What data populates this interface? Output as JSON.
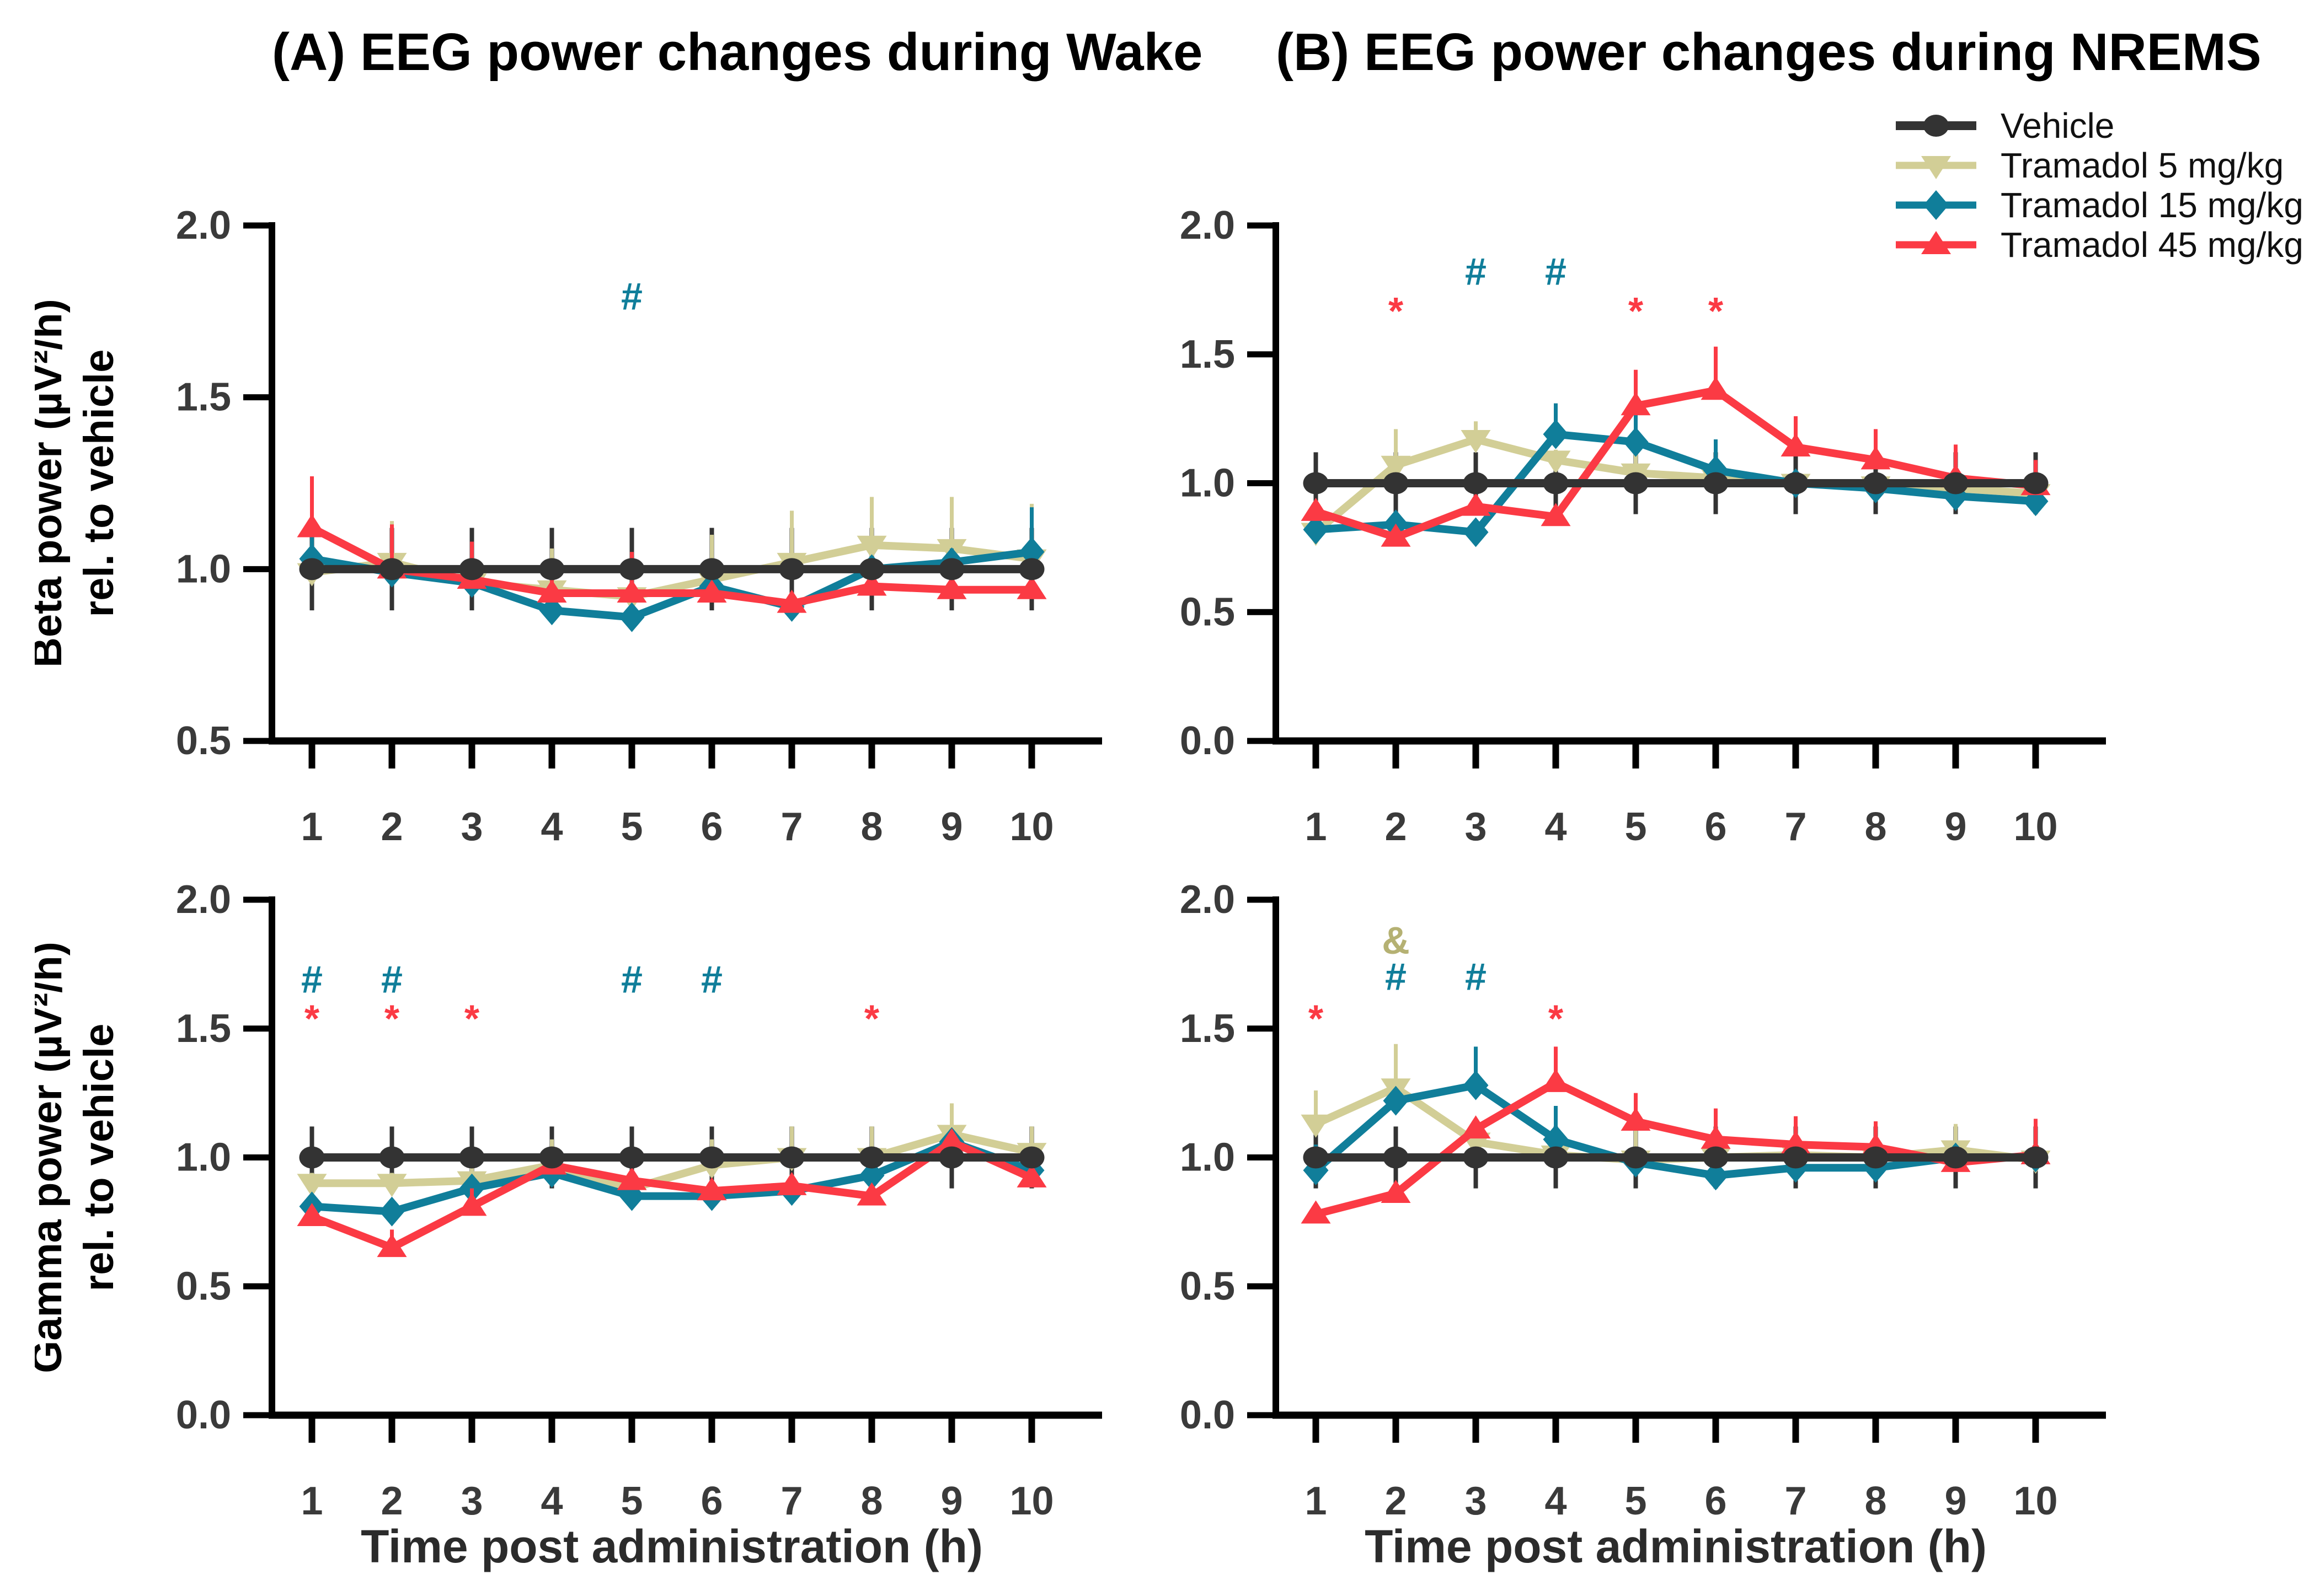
{
  "figure": {
    "panel_a_title": "(A) EEG power changes during Wake",
    "panel_b_title": "(B) EEG power changes during NREMS",
    "x_axis_label": "Time post administration (h)"
  },
  "legend": {
    "items": [
      {
        "label": "Vehicle",
        "color": "#333333",
        "marker": "circle"
      },
      {
        "label": "Tramadol 5 mg/kg",
        "color": "#D2CE96",
        "marker": "triangle-down"
      },
      {
        "label": "Tramadol 15 mg/kg",
        "color": "#107E9A",
        "marker": "diamond"
      },
      {
        "label": "Tramadol 45 mg/kg",
        "color": "#FB3A44",
        "marker": "triangle-up"
      }
    ]
  },
  "chart_data": [
    {
      "id": "beta-wake",
      "type": "line",
      "ylabel": [
        "Beta power (µV²/h)",
        "rel. to vehicle"
      ],
      "ylim": [
        0.5,
        2.0
      ],
      "yticks": [
        0.5,
        1.0,
        1.5,
        2.0
      ],
      "x": [
        1,
        2,
        3,
        4,
        5,
        6,
        7,
        8,
        9,
        10
      ],
      "series": [
        {
          "name": "Vehicle",
          "color": "#333333",
          "marker": "circle",
          "err_style": "both",
          "values": [
            1.0,
            1.0,
            1.0,
            1.0,
            1.0,
            1.0,
            1.0,
            1.0,
            1.0,
            1.0
          ],
          "err": [
            0.12,
            0.12,
            0.12,
            0.12,
            0.12,
            0.12,
            0.12,
            0.12,
            0.12,
            0.12
          ]
        },
        {
          "name": "Tramadol 5 mg/kg",
          "color": "#D2CE96",
          "marker": "triangle-down",
          "err_style": "up",
          "values": [
            0.99,
            1.02,
            0.96,
            0.94,
            0.92,
            0.97,
            1.02,
            1.07,
            1.06,
            1.03
          ],
          "err": [
            0.15,
            0.12,
            0.09,
            0.12,
            0.1,
            0.13,
            0.15,
            0.14,
            0.15,
            0.16
          ]
        },
        {
          "name": "Tramadol 15 mg/kg",
          "color": "#107E9A",
          "marker": "diamond",
          "err_style": "up",
          "values": [
            1.03,
            0.99,
            0.96,
            0.88,
            0.86,
            0.95,
            0.89,
            1.0,
            1.02,
            1.05
          ],
          "err": [
            0.12,
            0.04,
            0.1,
            0.04,
            0.03,
            0.03,
            0.03,
            0.03,
            0.04,
            0.13
          ]
        },
        {
          "name": "Tramadol 45 mg/kg",
          "color": "#FB3A44",
          "marker": "triangle-up",
          "err_style": "up",
          "values": [
            1.12,
            1.0,
            0.97,
            0.93,
            0.93,
            0.93,
            0.9,
            0.95,
            0.94,
            0.94
          ],
          "err": [
            0.15,
            0.13,
            0.11,
            0.04,
            0.12,
            0.03,
            0.03,
            0.04,
            0.03,
            0.03
          ]
        }
      ],
      "annotations": [
        {
          "x": 5,
          "y": 1.8,
          "text": "#",
          "color": "#107E9A"
        }
      ]
    },
    {
      "id": "beta-nrems",
      "type": "line",
      "ylabel": [],
      "ylim": [
        0.0,
        2.0
      ],
      "yticks": [
        0.0,
        0.5,
        1.0,
        1.5,
        2.0
      ],
      "x": [
        1,
        2,
        3,
        4,
        5,
        6,
        7,
        8,
        9,
        10
      ],
      "series": [
        {
          "name": "Vehicle",
          "color": "#333333",
          "marker": "circle",
          "err_style": "both",
          "values": [
            1.0,
            1.0,
            1.0,
            1.0,
            1.0,
            1.0,
            1.0,
            1.0,
            1.0,
            1.0
          ],
          "err": [
            0.12,
            0.12,
            0.12,
            0.12,
            0.12,
            0.12,
            0.12,
            0.12,
            0.12,
            0.12
          ]
        },
        {
          "name": "Tramadol 5 mg/kg",
          "color": "#D2CE96",
          "marker": "triangle-down",
          "err_style": "up",
          "values": [
            0.81,
            1.07,
            1.17,
            1.09,
            1.04,
            1.02,
            1.0,
            0.99,
            0.98,
            0.96
          ],
          "err": [
            0.04,
            0.14,
            0.07,
            0.04,
            0.13,
            0.07,
            0.04,
            0.04,
            0.04,
            0.12
          ]
        },
        {
          "name": "Tramadol 15 mg/kg",
          "color": "#107E9A",
          "marker": "diamond",
          "err_style": "up",
          "values": [
            0.82,
            0.84,
            0.81,
            1.19,
            1.16,
            1.05,
            1.0,
            0.98,
            0.95,
            0.93
          ],
          "err": [
            0.04,
            0.05,
            0.03,
            0.12,
            0.12,
            0.12,
            0.04,
            0.04,
            0.03,
            0.03
          ]
        },
        {
          "name": "Tramadol 45 mg/kg",
          "color": "#FB3A44",
          "marker": "triangle-up",
          "err_style": "up",
          "values": [
            0.89,
            0.79,
            0.91,
            0.87,
            1.3,
            1.36,
            1.14,
            1.09,
            1.02,
            0.99
          ],
          "err": [
            0.03,
            0.03,
            0.04,
            0.03,
            0.14,
            0.17,
            0.12,
            0.12,
            0.13,
            0.1
          ]
        }
      ],
      "annotations": [
        {
          "x": 2,
          "y": 1.72,
          "text": "*",
          "color": "#FB3A44"
        },
        {
          "x": 3,
          "y": 1.83,
          "text": "#",
          "color": "#107E9A"
        },
        {
          "x": 4,
          "y": 1.83,
          "text": "#",
          "color": "#107E9A"
        },
        {
          "x": 5,
          "y": 1.72,
          "text": "*",
          "color": "#FB3A44"
        },
        {
          "x": 6,
          "y": 1.72,
          "text": "*",
          "color": "#FB3A44"
        }
      ]
    },
    {
      "id": "gamma-wake",
      "type": "line",
      "ylabel": [
        "Gamma power (µV²/h)",
        "rel. to vehicle"
      ],
      "ylim": [
        0.0,
        2.0
      ],
      "yticks": [
        0.0,
        0.5,
        1.0,
        1.5,
        2.0
      ],
      "x": [
        1,
        2,
        3,
        4,
        5,
        6,
        7,
        8,
        9,
        10
      ],
      "series": [
        {
          "name": "Vehicle",
          "color": "#333333",
          "marker": "circle",
          "err_style": "both",
          "values": [
            1.0,
            1.0,
            1.0,
            1.0,
            1.0,
            1.0,
            1.0,
            1.0,
            1.0,
            1.0
          ],
          "err": [
            0.12,
            0.12,
            0.12,
            0.12,
            0.12,
            0.12,
            0.12,
            0.12,
            0.12,
            0.12
          ]
        },
        {
          "name": "Tramadol 5 mg/kg",
          "color": "#D2CE96",
          "marker": "triangle-down",
          "err_style": "up",
          "values": [
            0.9,
            0.9,
            0.91,
            0.97,
            0.88,
            0.97,
            1.0,
            1.0,
            1.09,
            1.02
          ],
          "err": [
            0.04,
            0.04,
            0.05,
            0.1,
            0.04,
            0.1,
            0.12,
            0.12,
            0.12,
            0.1
          ]
        },
        {
          "name": "Tramadol 15 mg/kg",
          "color": "#107E9A",
          "marker": "diamond",
          "err_style": "up",
          "values": [
            0.81,
            0.79,
            0.88,
            0.94,
            0.85,
            0.85,
            0.87,
            0.93,
            1.06,
            0.95
          ],
          "err": [
            0.04,
            0.04,
            0.04,
            0.04,
            0.03,
            0.03,
            0.03,
            0.03,
            0.05,
            0.03
          ]
        },
        {
          "name": "Tramadol 45 mg/kg",
          "color": "#FB3A44",
          "marker": "triangle-up",
          "err_style": "up",
          "values": [
            0.77,
            0.65,
            0.81,
            0.97,
            0.91,
            0.87,
            0.89,
            0.85,
            1.06,
            0.92
          ],
          "err": [
            0.04,
            0.07,
            0.07,
            0.04,
            0.04,
            0.03,
            0.03,
            0.03,
            0.04,
            0.03
          ]
        }
      ],
      "annotations": [
        {
          "x": 1,
          "y": 1.7,
          "text": "#",
          "color": "#107E9A"
        },
        {
          "x": 1,
          "y": 1.59,
          "text": "*",
          "color": "#FB3A44"
        },
        {
          "x": 2,
          "y": 1.7,
          "text": "#",
          "color": "#107E9A"
        },
        {
          "x": 2,
          "y": 1.59,
          "text": "*",
          "color": "#FB3A44"
        },
        {
          "x": 3,
          "y": 1.59,
          "text": "*",
          "color": "#FB3A44"
        },
        {
          "x": 5,
          "y": 1.7,
          "text": "#",
          "color": "#107E9A"
        },
        {
          "x": 6,
          "y": 1.7,
          "text": "#",
          "color": "#107E9A"
        },
        {
          "x": 8,
          "y": 1.59,
          "text": "*",
          "color": "#FB3A44"
        }
      ]
    },
    {
      "id": "gamma-nrems",
      "type": "line",
      "ylabel": [],
      "ylim": [
        0.0,
        2.0
      ],
      "yticks": [
        0.0,
        0.5,
        1.0,
        1.5,
        2.0
      ],
      "x": [
        1,
        2,
        3,
        4,
        5,
        6,
        7,
        8,
        9,
        10
      ],
      "series": [
        {
          "name": "Vehicle",
          "color": "#333333",
          "marker": "circle",
          "err_style": "both",
          "values": [
            1.0,
            1.0,
            1.0,
            1.0,
            1.0,
            1.0,
            1.0,
            1.0,
            1.0,
            1.0
          ],
          "err": [
            0.12,
            0.12,
            0.12,
            0.12,
            0.12,
            0.12,
            0.12,
            0.12,
            0.12,
            0.12
          ]
        },
        {
          "name": "Tramadol 5 mg/kg",
          "color": "#D2CE96",
          "marker": "triangle-down",
          "err_style": "up",
          "values": [
            1.13,
            1.27,
            1.06,
            1.01,
            0.99,
            1.0,
            1.01,
            1.0,
            1.03,
            0.99
          ],
          "err": [
            0.13,
            0.17,
            0.09,
            0.05,
            0.12,
            0.12,
            0.11,
            0.12,
            0.1,
            0.12
          ]
        },
        {
          "name": "Tramadol 15 mg/kg",
          "color": "#107E9A",
          "marker": "diamond",
          "err_style": "up",
          "values": [
            0.95,
            1.22,
            1.28,
            1.07,
            0.98,
            0.93,
            0.96,
            0.96,
            1.0,
            1.0
          ],
          "err": [
            0.1,
            0.04,
            0.15,
            0.13,
            0.03,
            0.03,
            0.03,
            0.03,
            0.03,
            0.12
          ]
        },
        {
          "name": "Tramadol 45 mg/kg",
          "color": "#FB3A44",
          "marker": "triangle-up",
          "err_style": "up",
          "values": [
            0.78,
            0.86,
            1.11,
            1.29,
            1.14,
            1.07,
            1.05,
            1.04,
            0.98,
            1.01
          ],
          "err": [
            0.04,
            0.04,
            0.04,
            0.14,
            0.11,
            0.12,
            0.11,
            0.1,
            0.03,
            0.14
          ]
        }
      ],
      "annotations": [
        {
          "x": 1,
          "y": 1.59,
          "text": "*",
          "color": "#FB3A44"
        },
        {
          "x": 2,
          "y": 1.85,
          "text": "&",
          "color": "#B5B173"
        },
        {
          "x": 2,
          "y": 1.71,
          "text": "#",
          "color": "#107E9A"
        },
        {
          "x": 3,
          "y": 1.71,
          "text": "#",
          "color": "#107E9A"
        },
        {
          "x": 4,
          "y": 1.59,
          "text": "*",
          "color": "#FB3A44"
        }
      ]
    }
  ]
}
